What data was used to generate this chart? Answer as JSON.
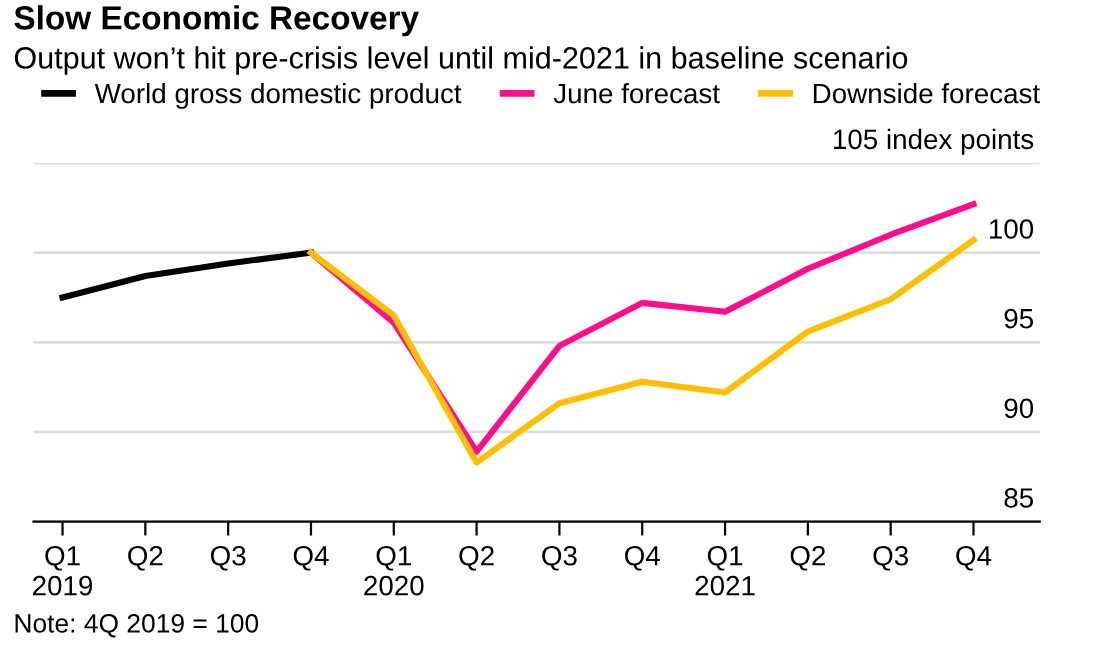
{
  "chart_data": {
    "type": "line",
    "title": "Slow Economic Recovery",
    "subtitle": "Output won’t hit pre-crisis level until mid-2021 in baseline scenario",
    "categories": [
      "Q1\n2019",
      "Q2",
      "Q3",
      "Q4",
      "Q1\n2020",
      "Q2",
      "Q3",
      "Q4",
      "Q1\n2021",
      "Q2",
      "Q3",
      "Q4"
    ],
    "series": [
      {
        "name": "World gross domestic product",
        "color": "#000000",
        "values": [
          97.5,
          98.7,
          99.4,
          100,
          null,
          null,
          null,
          null,
          null,
          null,
          null,
          null
        ]
      },
      {
        "name": "June forecast",
        "color": "#ff0d8a",
        "values": [
          null,
          null,
          null,
          100,
          96.1,
          88.9,
          94.8,
          97.2,
          96.7,
          99.1,
          101.0,
          102.7
        ]
      },
      {
        "name": "Downside forecast",
        "color": "#ffbf00",
        "values": [
          null,
          null,
          null,
          100,
          96.5,
          88.3,
          91.6,
          92.8,
          92.2,
          95.6,
          97.4,
          100.7
        ]
      }
    ],
    "ylim": [
      85,
      105
    ],
    "yticks": [
      85,
      90,
      95,
      100,
      {
        "value": 105,
        "label": "105 index points"
      }
    ],
    "grid": "y",
    "legend": "top left",
    "marker": "none",
    "line_style": "solid",
    "annotations": [
      "Note: 4Q 2019 = 100"
    ]
  }
}
